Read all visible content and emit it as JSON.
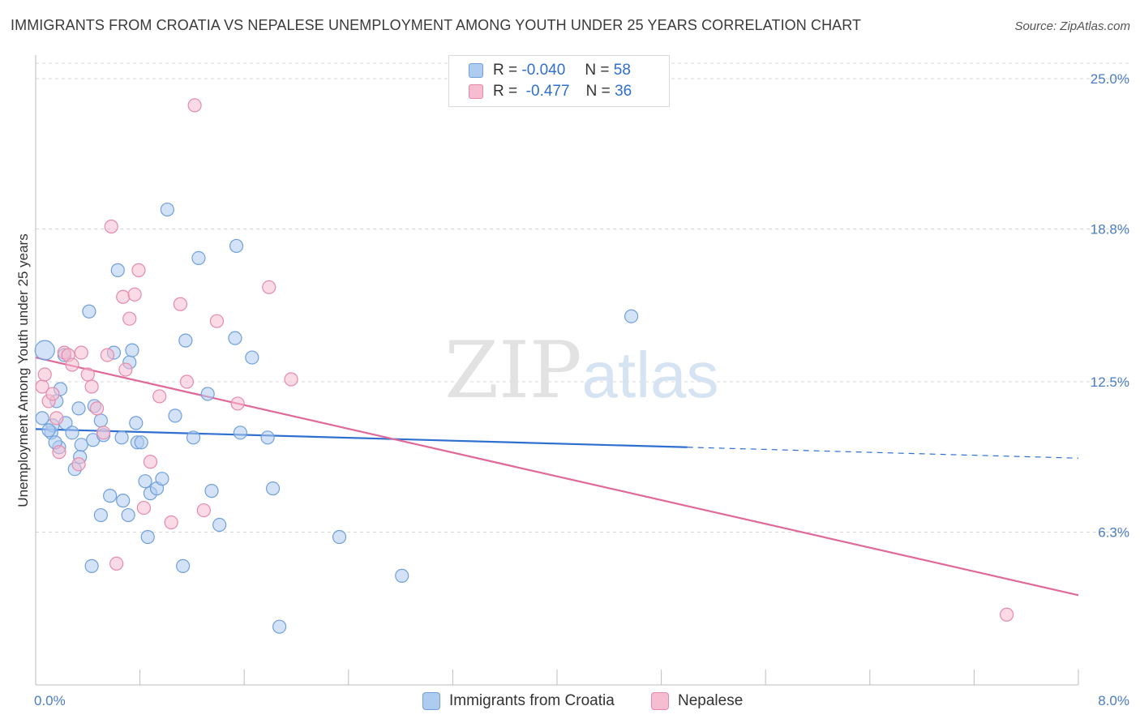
{
  "title": "IMMIGRANTS FROM CROATIA VS NEPALESE UNEMPLOYMENT AMONG YOUTH UNDER 25 YEARS CORRELATION CHART",
  "source": "Source: ZipAtlas.com",
  "watermark": {
    "zip": "ZIP",
    "atlas": "atlas"
  },
  "legend": {
    "rows": [
      {
        "r_label": "R =",
        "r_value": "-0.040",
        "n_label": "N =",
        "n_value": "58"
      },
      {
        "r_label": "R =",
        "r_value": "-0.477",
        "n_label": "N =",
        "n_value": "36"
      }
    ]
  },
  "bottom_legend": {
    "series1": "Immigrants from Croatia",
    "series2": "Nepalese"
  },
  "colors": {
    "blue_fill": "#aecbf0",
    "blue_stroke": "#6fa0dc",
    "blue_line": "#2f6fcf",
    "pink_fill": "#f6bccf",
    "pink_stroke": "#e68aa9",
    "pink_line": "#e0699a",
    "grid": "#d8d8d8",
    "axis_text": "#4a7cc7"
  },
  "chart_data": {
    "type": "scatter",
    "title": "IMMIGRANTS FROM CROATIA VS NEPALESE UNEMPLOYMENT AMONG YOUTH UNDER 25 YEARS CORRELATION CHART",
    "xlabel": "",
    "ylabel": "Unemployment Among Youth under 25 years",
    "xlim": [
      0,
      8
    ],
    "ylim": [
      0,
      25
    ],
    "x_tick_labels": [
      "0.0%",
      "8.0%"
    ],
    "y_ticks": [
      6.3,
      12.5,
      18.8,
      25.0
    ],
    "y_tick_labels": [
      "6.3%",
      "12.5%",
      "18.8%",
      "25.0%"
    ],
    "grid": "horizontal dashed",
    "legend_position": "top-center",
    "series": [
      {
        "name": "Immigrants from Croatia",
        "color": "#aecbf0",
        "points": [
          [
            0.07,
            13.8
          ],
          [
            0.05,
            11.0
          ],
          [
            0.12,
            10.4
          ],
          [
            0.16,
            11.7
          ],
          [
            0.19,
            12.2
          ],
          [
            0.18,
            9.8
          ],
          [
            0.23,
            10.8
          ],
          [
            0.15,
            10.0
          ],
          [
            0.28,
            10.4
          ],
          [
            0.33,
            11.4
          ],
          [
            0.35,
            9.9
          ],
          [
            0.34,
            9.4
          ],
          [
            0.3,
            8.9
          ],
          [
            0.41,
            15.4
          ],
          [
            0.44,
            10.1
          ],
          [
            0.45,
            11.5
          ],
          [
            0.5,
            10.9
          ],
          [
            0.52,
            10.3
          ],
          [
            0.57,
            7.8
          ],
          [
            0.63,
            17.1
          ],
          [
            0.6,
            13.7
          ],
          [
            0.66,
            10.2
          ],
          [
            0.72,
            13.3
          ],
          [
            0.74,
            13.8
          ],
          [
            0.71,
            7.0
          ],
          [
            0.67,
            7.6
          ],
          [
            0.5,
            7.0
          ],
          [
            0.77,
            10.8
          ],
          [
            0.78,
            10.0
          ],
          [
            0.81,
            10.0
          ],
          [
            0.84,
            8.4
          ],
          [
            0.88,
            7.9
          ],
          [
            0.93,
            8.1
          ],
          [
            0.97,
            8.5
          ],
          [
            1.01,
            19.6
          ],
          [
            1.07,
            11.1
          ],
          [
            1.15,
            14.2
          ],
          [
            1.21,
            10.2
          ],
          [
            1.25,
            17.6
          ],
          [
            1.32,
            12.0
          ],
          [
            1.35,
            8.0
          ],
          [
            1.41,
            6.6
          ],
          [
            1.53,
            14.3
          ],
          [
            1.54,
            18.1
          ],
          [
            1.57,
            10.4
          ],
          [
            1.66,
            13.5
          ],
          [
            1.78,
            10.2
          ],
          [
            1.82,
            8.1
          ],
          [
            0.43,
            4.9
          ],
          [
            0.86,
            6.1
          ],
          [
            1.13,
            4.9
          ],
          [
            2.33,
            6.1
          ],
          [
            2.81,
            4.5
          ],
          [
            1.87,
            2.4
          ],
          [
            4.57,
            15.2
          ],
          [
            0.22,
            13.6
          ],
          [
            0.13,
            10.7
          ],
          [
            0.1,
            10.5
          ]
        ],
        "trendline": {
          "x": [
            0.0,
            5.0
          ],
          "y": [
            10.55,
            9.8
          ],
          "dashed_extension": {
            "x": [
              5.0,
              8.0
            ],
            "y": [
              9.8,
              9.35
            ]
          }
        }
      },
      {
        "name": "Nepalese",
        "color": "#f6bccf",
        "points": [
          [
            0.05,
            12.3
          ],
          [
            0.07,
            12.8
          ],
          [
            0.1,
            11.7
          ],
          [
            0.16,
            11.0
          ],
          [
            0.18,
            9.6
          ],
          [
            0.22,
            13.7
          ],
          [
            0.25,
            13.6
          ],
          [
            0.28,
            13.2
          ],
          [
            0.35,
            13.7
          ],
          [
            0.4,
            12.8
          ],
          [
            0.43,
            12.3
          ],
          [
            0.47,
            11.4
          ],
          [
            0.52,
            10.4
          ],
          [
            0.55,
            13.6
          ],
          [
            0.58,
            18.9
          ],
          [
            0.67,
            16.0
          ],
          [
            0.69,
            13.0
          ],
          [
            0.72,
            15.1
          ],
          [
            0.76,
            16.1
          ],
          [
            0.79,
            17.1
          ],
          [
            0.83,
            7.3
          ],
          [
            0.88,
            9.2
          ],
          [
            0.95,
            11.9
          ],
          [
            1.04,
            6.7
          ],
          [
            1.11,
            15.7
          ],
          [
            1.16,
            12.5
          ],
          [
            1.22,
            23.9
          ],
          [
            1.29,
            7.2
          ],
          [
            1.39,
            15.0
          ],
          [
            1.55,
            11.6
          ],
          [
            1.79,
            16.4
          ],
          [
            1.96,
            12.6
          ],
          [
            0.62,
            5.0
          ],
          [
            0.33,
            9.1
          ],
          [
            7.45,
            2.9
          ],
          [
            0.13,
            12.0
          ]
        ],
        "trendline": {
          "x": [
            0.0,
            8.0
          ],
          "y": [
            13.5,
            3.7
          ]
        }
      }
    ]
  }
}
